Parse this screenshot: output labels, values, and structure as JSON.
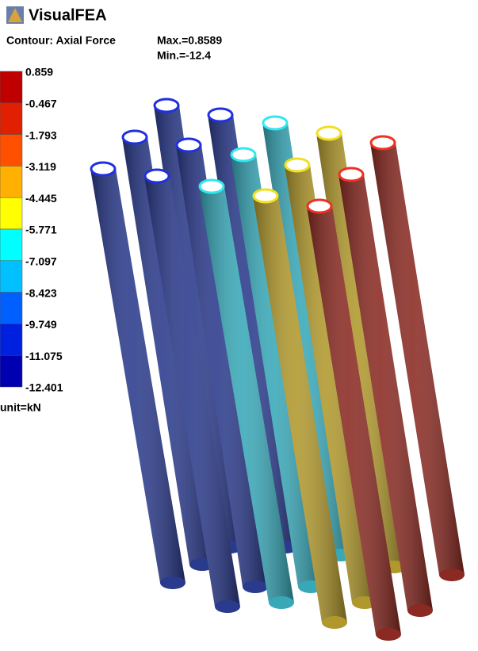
{
  "app": {
    "title": "VisualFEA"
  },
  "contour": {
    "label": "Contour: Axial Force",
    "max": "Max.=0.8589",
    "min": "Min.=-12.4"
  },
  "legend": {
    "labels": [
      "0.859",
      "-0.467",
      "-1.793",
      "-3.119",
      "-4.445",
      "-5.771",
      "-7.097",
      "-8.423",
      "-9.749",
      "-11.075",
      "-12.401"
    ],
    "unit": "unit=kN"
  }
}
